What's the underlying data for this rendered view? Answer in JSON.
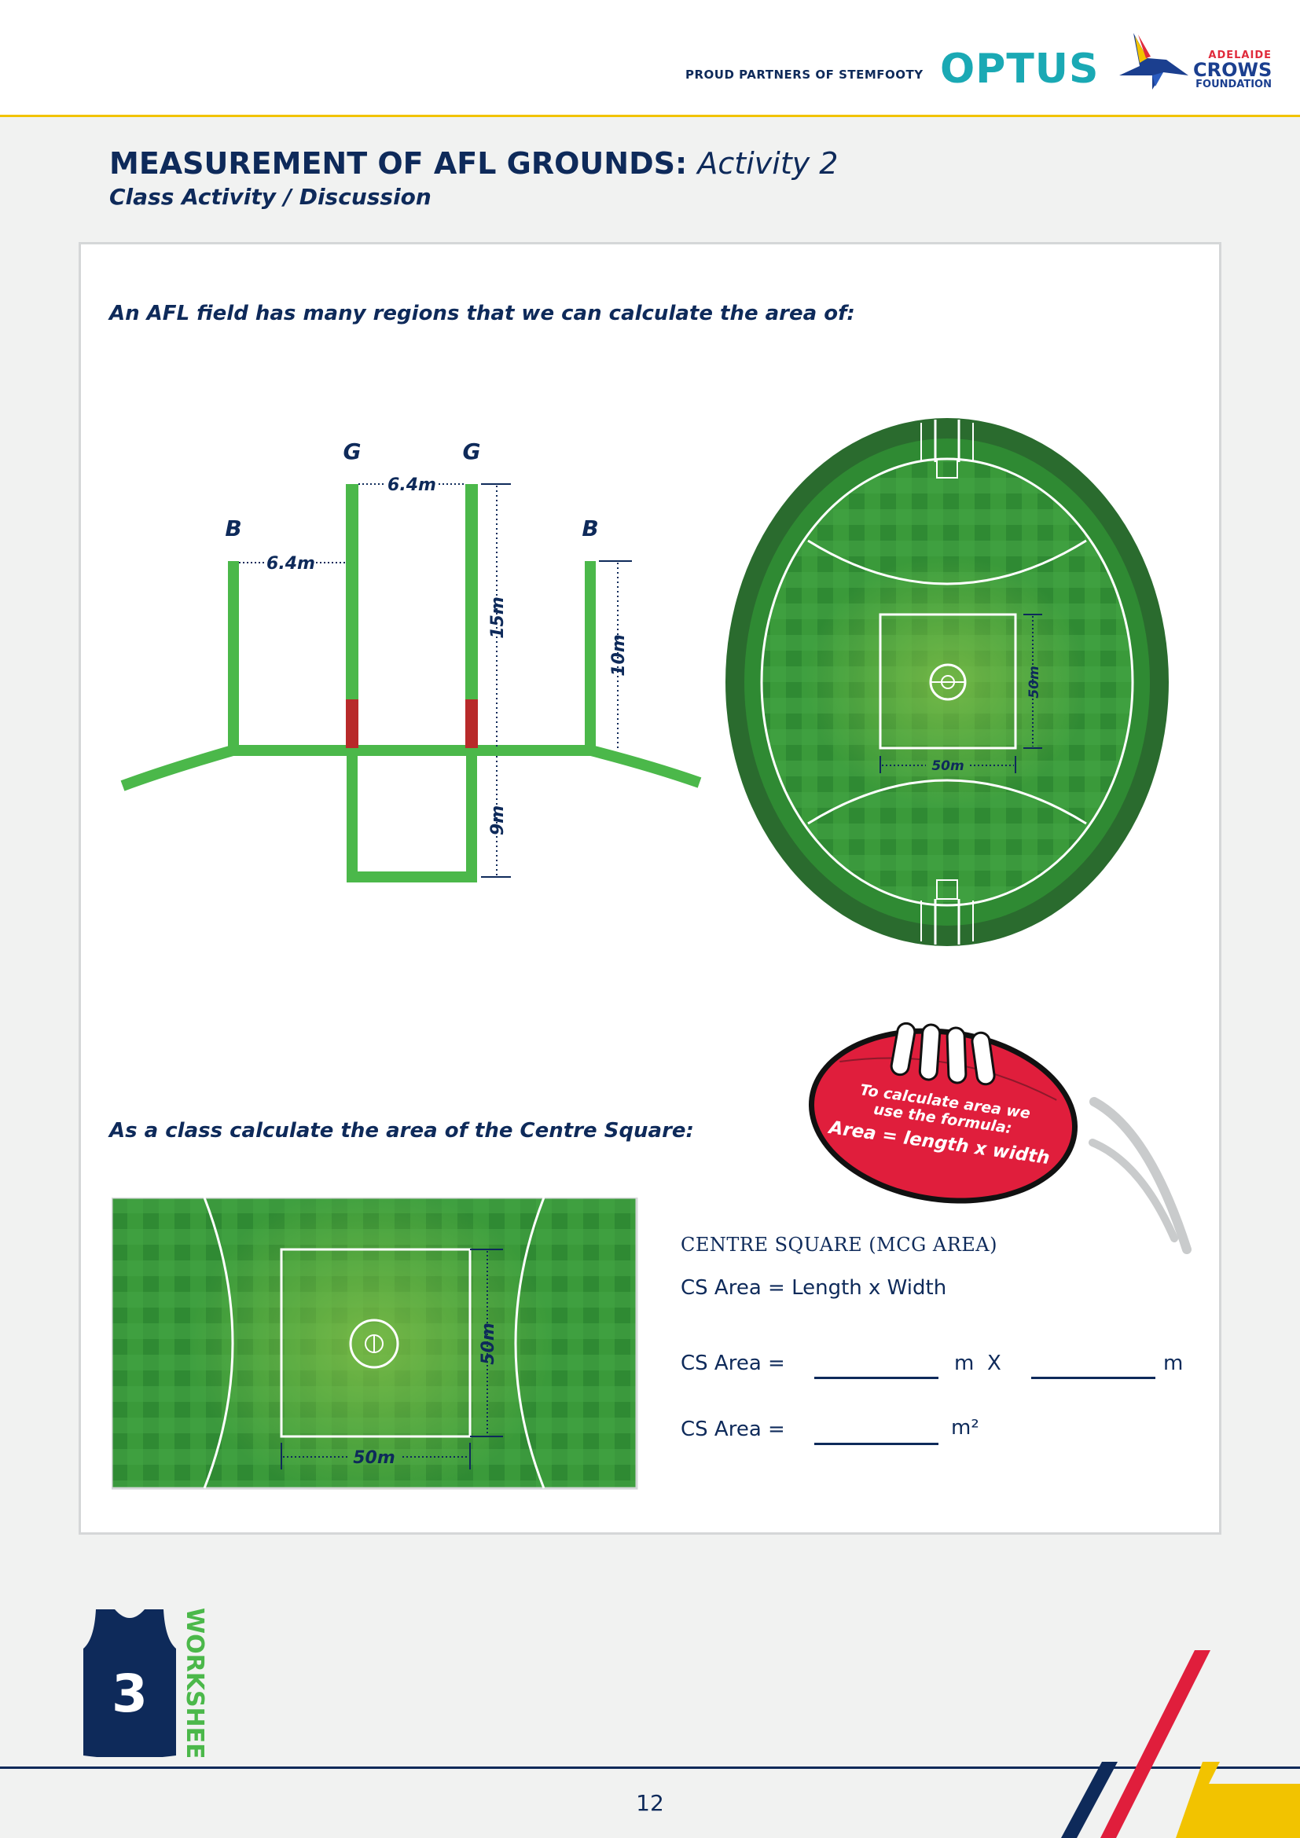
{
  "header": {
    "partner_text": "PROUD PARTNERS OF STEMFOOTY",
    "optus_logo": "OPTUS",
    "crows_logo": {
      "line1": "ADELAIDE",
      "line2": "CROWS",
      "line3": "FOUNDATION"
    }
  },
  "title": {
    "main": "MEASUREMENT OF AFL GROUNDS:",
    "activity": "Activity 2",
    "subtitle": "Class Activity / Discussion"
  },
  "question1": "An AFL field has many regions that we can calculate the area of:",
  "goals_diagram": {
    "goal_label": "G",
    "behind_label": "B",
    "goal_gap": "6.4m",
    "behind_gap": "6.4m",
    "goal_height": "15m",
    "behind_height": "10m",
    "square_depth": "9m"
  },
  "oval_diagram": {
    "square_width": "50m",
    "square_height": "50m"
  },
  "football": {
    "line1": "To calculate area we",
    "line2": "use the formula:",
    "formula": "Area = length x width"
  },
  "question2": "As a class calculate the area of the Centre Square:",
  "centre_square_diagram": {
    "width_label": "50m",
    "height_label": "50m"
  },
  "calculation": {
    "heading": "CENTRE SQUARE (MCG AREA)",
    "formula_line": "CS Area = Length x Width",
    "line2_label": "CS Area =",
    "unit_m": "m",
    "times": "X",
    "line3_label": "CS Area =",
    "unit_m2": "m²"
  },
  "worksheet": {
    "number": "3",
    "label": "WORKSHEET"
  },
  "footer": {
    "page_number": "12"
  },
  "colors": {
    "navy": "#0e2a5a",
    "green_post": "#4bb84a",
    "red_post": "#b82a2a",
    "optus_teal": "#1aa9b4",
    "crows_red": "#e02a3b",
    "yellow": "#f2c300",
    "ball_red": "#e01e3c"
  }
}
